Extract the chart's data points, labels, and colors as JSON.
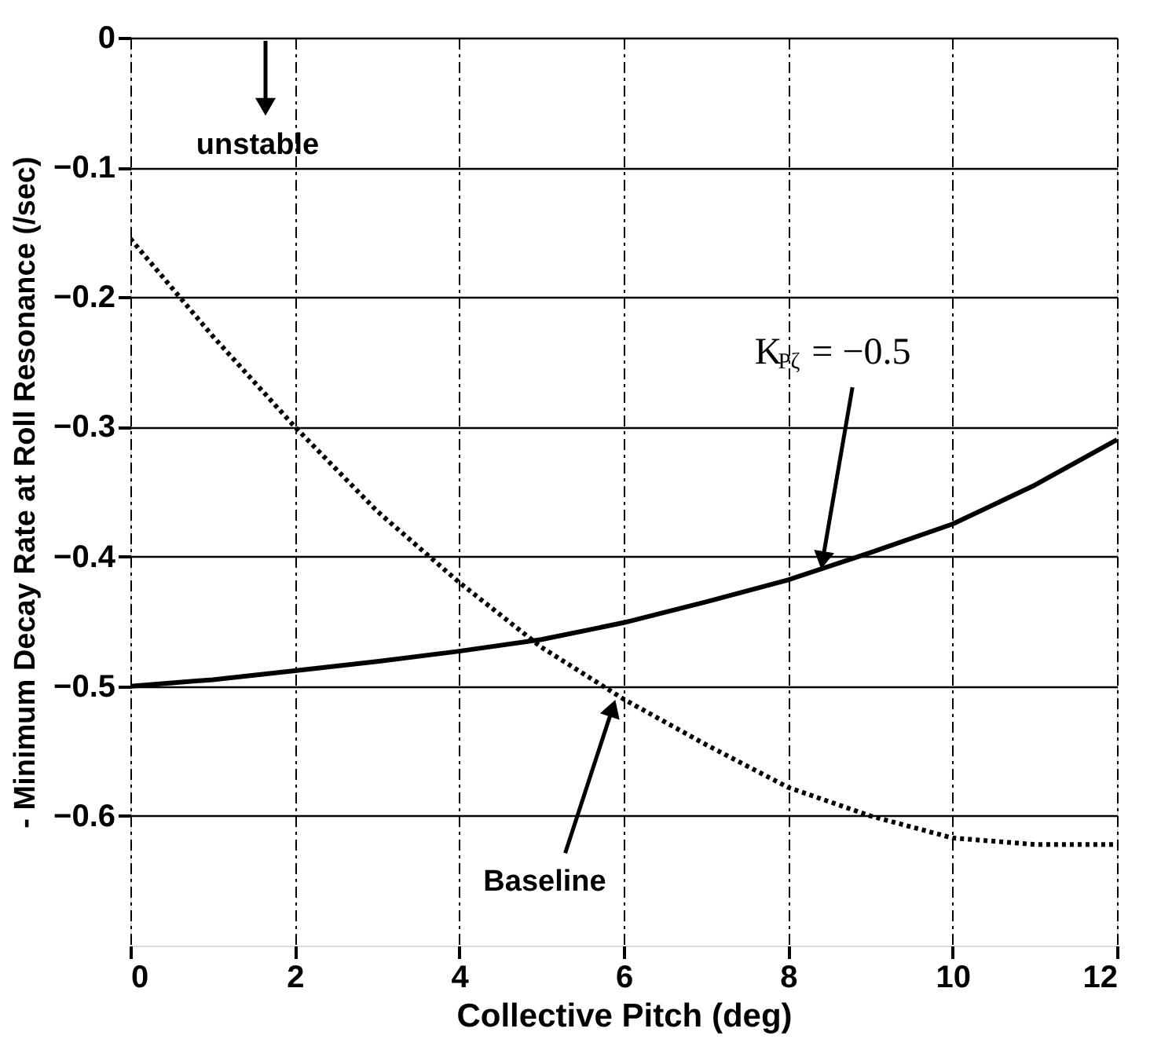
{
  "chart_data": {
    "type": "line",
    "xlabel": "Collective Pitch (deg)",
    "ylabel": "- Minimum Decay Rate at Roll Resonance (/sec)",
    "xlim": [
      0,
      12
    ],
    "xticks": [
      0,
      2,
      4,
      6,
      8,
      10,
      12
    ],
    "ylim": [
      -0.7,
      0
    ],
    "yticks": [
      0,
      -0.1,
      -0.2,
      -0.3,
      -0.4,
      -0.5,
      -0.6
    ],
    "grid": true,
    "series": [
      {
        "color": "#000000",
        "line_style": "dotted",
        "x": [
          0,
          1,
          2,
          3,
          4,
          5,
          6,
          7,
          8,
          9,
          10,
          11,
          12
        ],
        "values": [
          -0.155,
          -0.23,
          -0.3,
          -0.365,
          -0.42,
          -0.47,
          -0.51,
          -0.545,
          -0.578,
          -0.6,
          -0.617,
          -0.622,
          -0.622
        ]
      },
      {
        "color": "#000000",
        "line_style": "solid",
        "x": [
          0,
          1,
          2,
          3,
          4,
          5,
          6,
          7,
          8,
          9,
          10,
          11,
          12
        ],
        "values": [
          -0.5,
          -0.495,
          -0.488,
          -0.481,
          -0.473,
          -0.464,
          -0.451,
          -0.435,
          -0.418,
          -0.397,
          -0.375,
          -0.345,
          -0.31
        ]
      }
    ],
    "annotations": [
      "unstable",
      {
        "text": "K$_{Pζ}$ = −0.5",
        "x": 8.4,
        "y": -0.41
      },
      {
        "text": "Baseline",
        "x": 5.9,
        "y": -0.51
      }
    ]
  }
}
